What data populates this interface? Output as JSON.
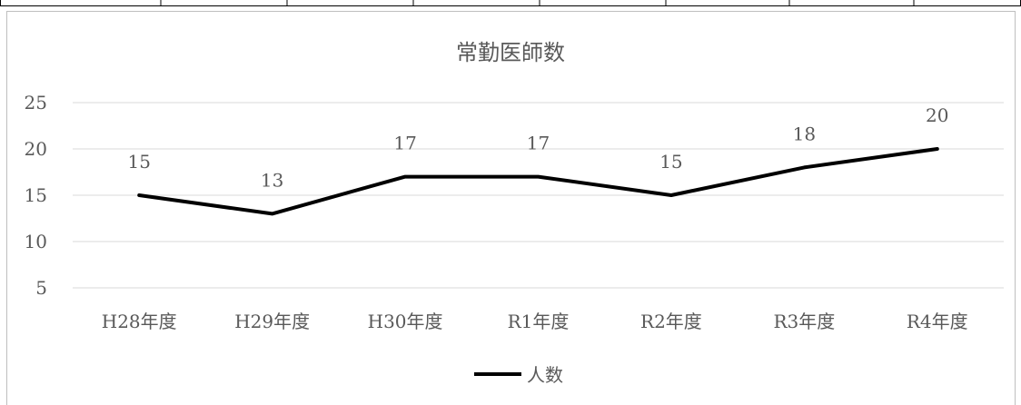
{
  "chart_data": {
    "type": "line",
    "title": "常勤医師数",
    "xlabel": "",
    "ylabel": "",
    "categories": [
      "H28年度",
      "H29年度",
      "H30年度",
      "R1年度",
      "R2年度",
      "R3年度",
      "R4年度"
    ],
    "series": [
      {
        "name": "人数",
        "values": [
          15,
          13,
          17,
          17,
          15,
          18,
          20
        ],
        "color": "#000000"
      }
    ],
    "yticks": [
      5,
      10,
      15,
      20,
      25
    ],
    "ylim": [
      3,
      25
    ],
    "grid": true,
    "data_labels": true,
    "legend": "bottom"
  },
  "colors": {
    "gridline": "#d9d9d9",
    "axis_text": "#595959",
    "line": "#000000",
    "frame": "#bfbfbf"
  }
}
